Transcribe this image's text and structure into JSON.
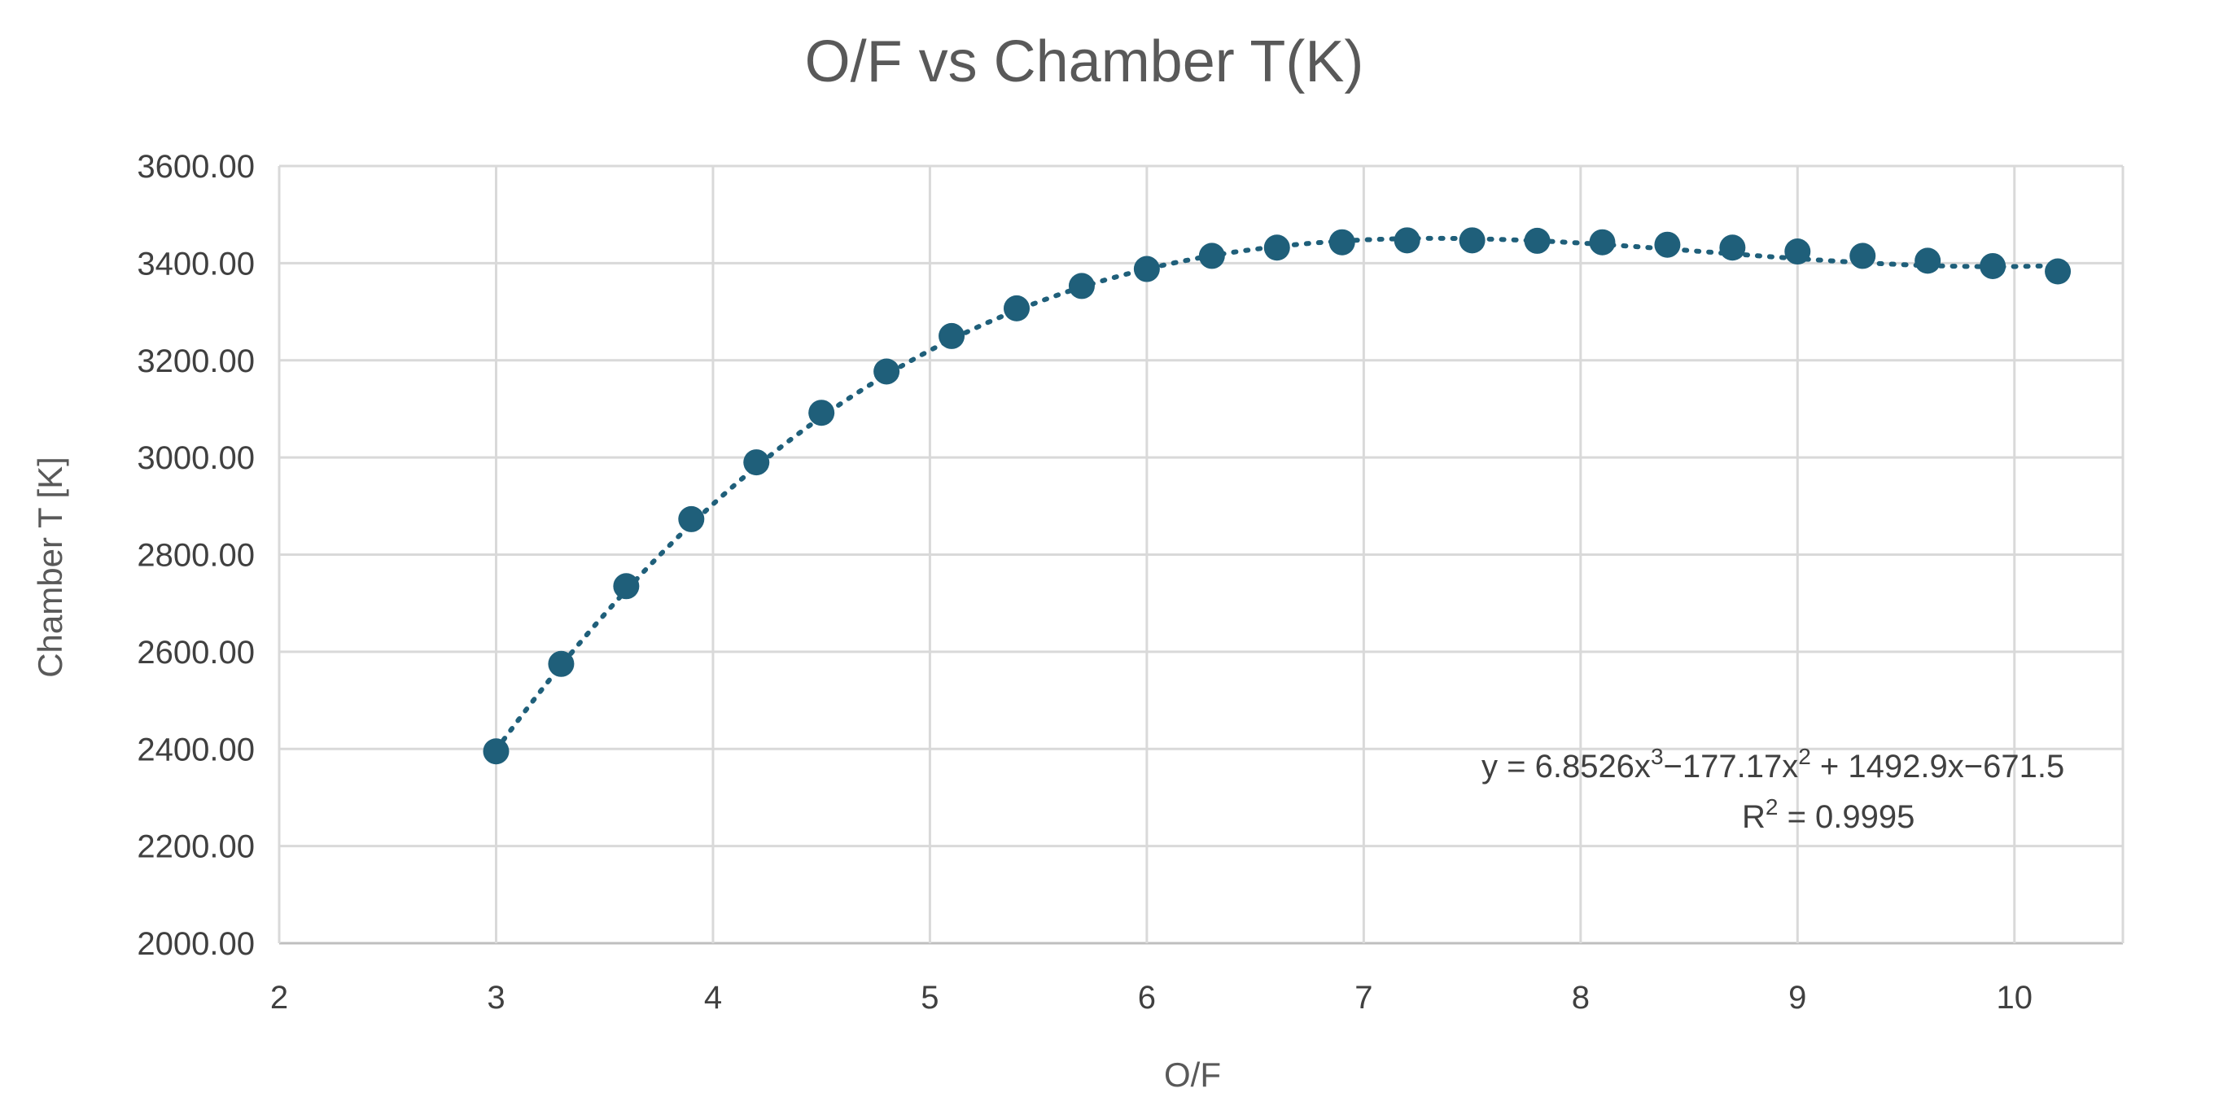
{
  "chart_data": {
    "type": "scatter",
    "title": "O/F vs Chamber T(K)",
    "xlabel": "O/F",
    "ylabel": "Chamber T [K]",
    "xlim": [
      2,
      10.5
    ],
    "ylim": [
      2000,
      3600
    ],
    "x_ticks": [
      2,
      3,
      4,
      5,
      6,
      7,
      8,
      9,
      10
    ],
    "y_ticks": [
      2000,
      2200,
      2400,
      2600,
      2800,
      3000,
      3200,
      3400,
      3600
    ],
    "y_tick_labels": [
      "2000.00",
      "2200.00",
      "2400.00",
      "2600.00",
      "2800.00",
      "3000.00",
      "3200.00",
      "3400.00",
      "3600.00"
    ],
    "grid": true,
    "legend": "none",
    "marker_color": "#1f5f7a",
    "trendline": {
      "type": "polynomial-3",
      "style": "dotted",
      "coefficients": [
        6.8526,
        -177.17,
        1492.9,
        -671.5
      ],
      "equation_parts": {
        "a": "y = 6.8526x",
        "b": "3",
        "c": "−177.17x",
        "d": "2",
        "e": " + 1492.9x−671.5"
      },
      "r2_parts": {
        "a": "R",
        "b": "2",
        "c": " = 0.9995"
      }
    },
    "points": [
      {
        "x": 3.0,
        "y": 2395
      },
      {
        "x": 3.3,
        "y": 2575
      },
      {
        "x": 3.6,
        "y": 2735
      },
      {
        "x": 3.9,
        "y": 2873
      },
      {
        "x": 4.2,
        "y": 2990
      },
      {
        "x": 4.5,
        "y": 3092
      },
      {
        "x": 4.8,
        "y": 3177
      },
      {
        "x": 5.1,
        "y": 3250
      },
      {
        "x": 5.4,
        "y": 3307
      },
      {
        "x": 5.7,
        "y": 3353
      },
      {
        "x": 6.0,
        "y": 3388
      },
      {
        "x": 6.3,
        "y": 3415
      },
      {
        "x": 6.6,
        "y": 3432
      },
      {
        "x": 6.9,
        "y": 3443
      },
      {
        "x": 7.2,
        "y": 3447
      },
      {
        "x": 7.5,
        "y": 3447
      },
      {
        "x": 7.8,
        "y": 3446
      },
      {
        "x": 8.1,
        "y": 3443
      },
      {
        "x": 8.4,
        "y": 3438
      },
      {
        "x": 8.7,
        "y": 3432
      },
      {
        "x": 9.0,
        "y": 3424
      },
      {
        "x": 9.3,
        "y": 3415
      },
      {
        "x": 9.6,
        "y": 3405
      },
      {
        "x": 9.9,
        "y": 3394
      },
      {
        "x": 10.2,
        "y": 3383
      }
    ]
  }
}
